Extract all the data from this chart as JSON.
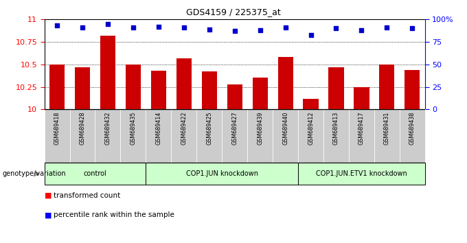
{
  "title": "GDS4159 / 225375_at",
  "samples": [
    "GSM689418",
    "GSM689428",
    "GSM689432",
    "GSM689435",
    "GSM689414",
    "GSM689422",
    "GSM689425",
    "GSM689427",
    "GSM689439",
    "GSM689440",
    "GSM689412",
    "GSM689413",
    "GSM689417",
    "GSM689431",
    "GSM689438"
  ],
  "bar_values": [
    10.5,
    10.47,
    10.82,
    10.5,
    10.43,
    10.57,
    10.42,
    10.28,
    10.35,
    10.58,
    10.12,
    10.47,
    10.25,
    10.5,
    10.44
  ],
  "percentile_values": [
    93,
    91,
    95,
    91,
    92,
    91,
    89,
    87,
    88,
    91,
    83,
    90,
    88,
    91,
    90
  ],
  "bar_color": "#cc0000",
  "dot_color": "#0000cc",
  "ylim_left": [
    10,
    11
  ],
  "ylim_right": [
    0,
    100
  ],
  "yticks_left": [
    10,
    10.25,
    10.5,
    10.75,
    11
  ],
  "yticks_right": [
    0,
    25,
    50,
    75,
    100
  ],
  "ytick_right_labels": [
    "0",
    "25",
    "50",
    "75",
    "100%"
  ],
  "hgrid_lines": [
    10.25,
    10.5,
    10.75
  ],
  "groups": [
    {
      "label": "control",
      "start": 0,
      "end": 3
    },
    {
      "label": "COP1.JUN knockdown",
      "start": 4,
      "end": 9
    },
    {
      "label": "COP1.JUN.ETV1 knockdown",
      "start": 10,
      "end": 14
    }
  ],
  "sample_box_color": "#cccccc",
  "group_box_color": "#ccffcc",
  "group_border_color": "#000000",
  "legend_red_label": "transformed count",
  "legend_blue_label": "percentile rank within the sample",
  "genotype_label": "genotype/variation"
}
